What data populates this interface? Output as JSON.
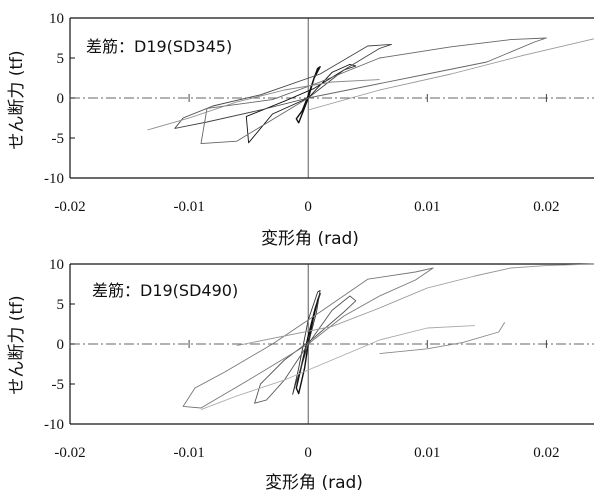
{
  "chart_data": [
    {
      "type": "line",
      "annotation": "差筋：D19(SD345)",
      "xlabel": "変形角 (rad)",
      "ylabel": "せん断力 (tf)",
      "xlim": [
        -0.02,
        0.024
      ],
      "ylim": [
        -10,
        10
      ],
      "x_ticks": [
        -0.02,
        -0.01,
        0,
        0.01,
        0.02
      ],
      "x_tick_labels": [
        "-0.02",
        "-0.01",
        "0",
        "0.01",
        "0.02"
      ],
      "y_ticks": [
        -10,
        -5,
        0,
        5,
        10
      ],
      "y_tick_labels": [
        "-10",
        "-5",
        "0",
        "5",
        "10"
      ],
      "grid": false,
      "series": [
        {
          "color": "#111111",
          "x": [
            0,
            0.0005,
            0.0008,
            0.001,
            0.0005,
            0,
            -0.0005,
            -0.001,
            -0.0008,
            -0.0004,
            0
          ],
          "y": [
            0,
            2.5,
            3.7,
            3.9,
            2.5,
            0.3,
            -1.6,
            -2.6,
            -3.1,
            -1.6,
            0
          ]
        },
        {
          "color": "#111111",
          "x": [
            0,
            0.002,
            0.0035,
            0.004,
            0.003,
            0.0005,
            -0.002,
            -0.004,
            -0.0052,
            -0.005,
            -0.003,
            0
          ],
          "y": [
            0,
            3.2,
            4.2,
            4.0,
            3.5,
            1.2,
            -0.4,
            -1.6,
            -2.3,
            -5.6,
            -2.0,
            0
          ]
        },
        {
          "color": "#444444",
          "x": [
            0,
            0.003,
            0.006,
            0.007,
            0.005,
            0.001,
            -0.004,
            -0.008,
            -0.0105,
            -0.0112,
            -0.0085,
            -0.004,
            0
          ],
          "y": [
            0,
            3.5,
            6.2,
            6.7,
            6.5,
            3.0,
            0.4,
            -1.0,
            -2.5,
            -3.8,
            -3.0,
            -1.5,
            0
          ]
        },
        {
          "color": "#666666",
          "x": [
            0,
            0.005,
            0.01,
            0.015,
            0.019,
            0.02,
            0.017,
            0.012,
            0.006,
            0.001,
            -0.003,
            -0.0085,
            -0.009,
            -0.006,
            -0.002,
            0
          ],
          "y": [
            0,
            1.5,
            3.0,
            4.5,
            7.0,
            7.5,
            7.3,
            6.4,
            5.0,
            2.0,
            -0.2,
            -1.3,
            -5.7,
            -5.4,
            -1.8,
            0
          ]
        },
        {
          "color": "#999999",
          "x": [
            0.0,
            0.006,
            0.012,
            0.018,
            0.024
          ],
          "y": [
            -1.5,
            1.0,
            3.0,
            5.3,
            7.4
          ]
        },
        {
          "color": "#888888",
          "x": [
            -0.0135,
            -0.01,
            -0.006,
            -0.002,
            0.002,
            0.006
          ],
          "y": [
            -4.0,
            -2.5,
            -0.5,
            1.0,
            2.0,
            2.3
          ]
        }
      ]
    },
    {
      "type": "line",
      "annotation": "差筋：D19(SD490)",
      "xlabel": "変形角 (rad)",
      "ylabel": "せん断力 (tf)",
      "xlim": [
        -0.02,
        0.024
      ],
      "ylim": [
        -10,
        10
      ],
      "x_ticks": [
        -0.02,
        -0.01,
        0,
        0.01,
        0.02
      ],
      "x_tick_labels": [
        "-0.02",
        "-0.01",
        "0",
        "0.01",
        "0.02"
      ],
      "y_ticks": [
        -10,
        -5,
        0,
        5,
        10
      ],
      "y_tick_labels": [
        "-10",
        "-5",
        "0",
        "5",
        "10"
      ],
      "grid": false,
      "series": [
        {
          "color": "#111111",
          "x": [
            0,
            0.0004,
            0.0008,
            0.001,
            0.0006,
            0,
            -0.0006,
            -0.001,
            -0.0008,
            -0.0003,
            0
          ],
          "y": [
            0,
            3.0,
            5.5,
            6.3,
            4.5,
            1.0,
            -3.0,
            -5.5,
            -6.2,
            -3.0,
            0
          ]
        },
        {
          "color": "#333333",
          "x": [
            0,
            0.0007,
            0.001,
            0.0008,
            0,
            -0.0008,
            -0.0013,
            -0.0011,
            -0.0004,
            0
          ],
          "y": [
            0,
            4.0,
            6.7,
            6.5,
            3.0,
            -3.0,
            -6.3,
            -5.2,
            -2.0,
            0
          ]
        },
        {
          "color": "#555555",
          "x": [
            0,
            0.002,
            0.0035,
            0.004,
            0.003,
            0.0005,
            -0.002,
            -0.004,
            -0.0045,
            -0.0035,
            -0.002,
            0
          ],
          "y": [
            0,
            4.2,
            6.0,
            5.4,
            4.0,
            0.8,
            -2.0,
            -5.0,
            -7.4,
            -7.0,
            -4.5,
            0
          ]
        },
        {
          "color": "#777777",
          "x": [
            0,
            0.003,
            0.006,
            0.009,
            0.0105,
            0.009,
            0.005,
            0.001,
            -0.003,
            -0.007,
            -0.0095,
            -0.0105,
            -0.009,
            -0.005,
            0
          ],
          "y": [
            0,
            3.5,
            6.0,
            8.0,
            9.5,
            9.0,
            8.1,
            4.0,
            0.0,
            -3.5,
            -5.5,
            -7.8,
            -8.0,
            -4.5,
            0
          ]
        },
        {
          "color": "#999999",
          "x": [
            -0.006,
            -0.002,
            0.002,
            0.006,
            0.01,
            0.014,
            0.017,
            0.02,
            0.024
          ],
          "y": [
            -0.2,
            1.0,
            2.2,
            4.5,
            7.0,
            8.5,
            9.5,
            9.8,
            10.0
          ]
        },
        {
          "color": "#888888",
          "x": [
            0.006,
            0.01,
            0.013,
            0.016,
            0.0165
          ],
          "y": [
            -1.2,
            -0.6,
            0.2,
            1.5,
            2.7
          ]
        },
        {
          "color": "#aaaaaa",
          "x": [
            -0.009,
            -0.006,
            -0.002,
            0.002,
            0.006,
            0.01,
            0.014
          ],
          "y": [
            -8.2,
            -6.5,
            -4.5,
            -2.0,
            0.5,
            2.0,
            2.3
          ]
        }
      ]
    }
  ]
}
